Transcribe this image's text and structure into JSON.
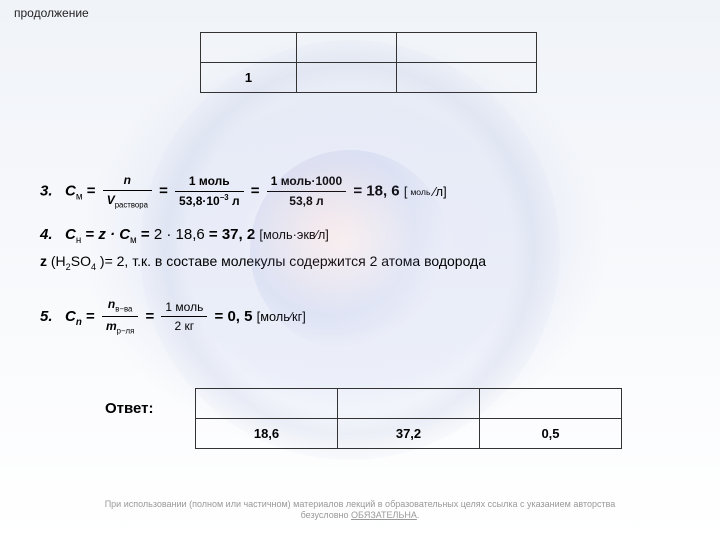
{
  "header": {
    "title": "продолжение"
  },
  "table1": {
    "rows": [
      [
        "",
        "",
        ""
      ],
      [
        "1",
        "",
        ""
      ]
    ]
  },
  "eq3": {
    "num_label": "3.",
    "lhs": "C",
    "lhs_sub": "м",
    "f1_num": "n",
    "f1_den": "V",
    "f1_den_sub": "раствора",
    "f2_num": "1 моль",
    "f2_den_a": "53,8·10",
    "f2_den_exp": "−3",
    "f2_den_unit": " л",
    "f3_num": "1 моль·1000",
    "f3_den": "53,8 л",
    "result": "18, 6",
    "unit_num": "моль",
    "unit_den": "л"
  },
  "eq4": {
    "num_label": "4.",
    "lhs": "C",
    "lhs_sub": "н",
    "rhs_a": "z · C",
    "rhs_a_sub": "м",
    "mid": "2 · 18,6",
    "result": "37, 2",
    "unit_num": "моль·экв",
    "unit_den": "л"
  },
  "ztext": {
    "z": "z",
    "paren": " (H",
    "sub1": "2",
    "mid": "SO",
    "sub2": "4",
    "after": " )= 2, т.к. в составе молекулы содержится 2 атома водорода"
  },
  "eq5": {
    "num_label": "5.",
    "lhs": "C",
    "lhs_sub": "n",
    "f1_num_a": "n",
    "f1_num_sub": "в−ва",
    "f1_den_a": "m",
    "f1_den_sub": "р−ля",
    "f2_num": "1 моль",
    "f2_den": "2 кг",
    "result": "0, 5",
    "unit_num": "моль",
    "unit_den": "кг"
  },
  "answer": {
    "label": "Ответ:"
  },
  "table2": {
    "rows": [
      [
        "",
        "",
        ""
      ],
      [
        "18,6",
        "37,2",
        "0,5"
      ]
    ]
  },
  "footer": {
    "line1": "При использовании (полном или частичном) материалов лекций в образовательных целях ссылка с указанием авторства",
    "line2a": "безусловно ",
    "line2b": "ОБЯЗАТЕЛЬНА",
    "line2c": "."
  },
  "colors": {
    "text": "#000000",
    "border": "#333333",
    "footer": "#999999"
  }
}
